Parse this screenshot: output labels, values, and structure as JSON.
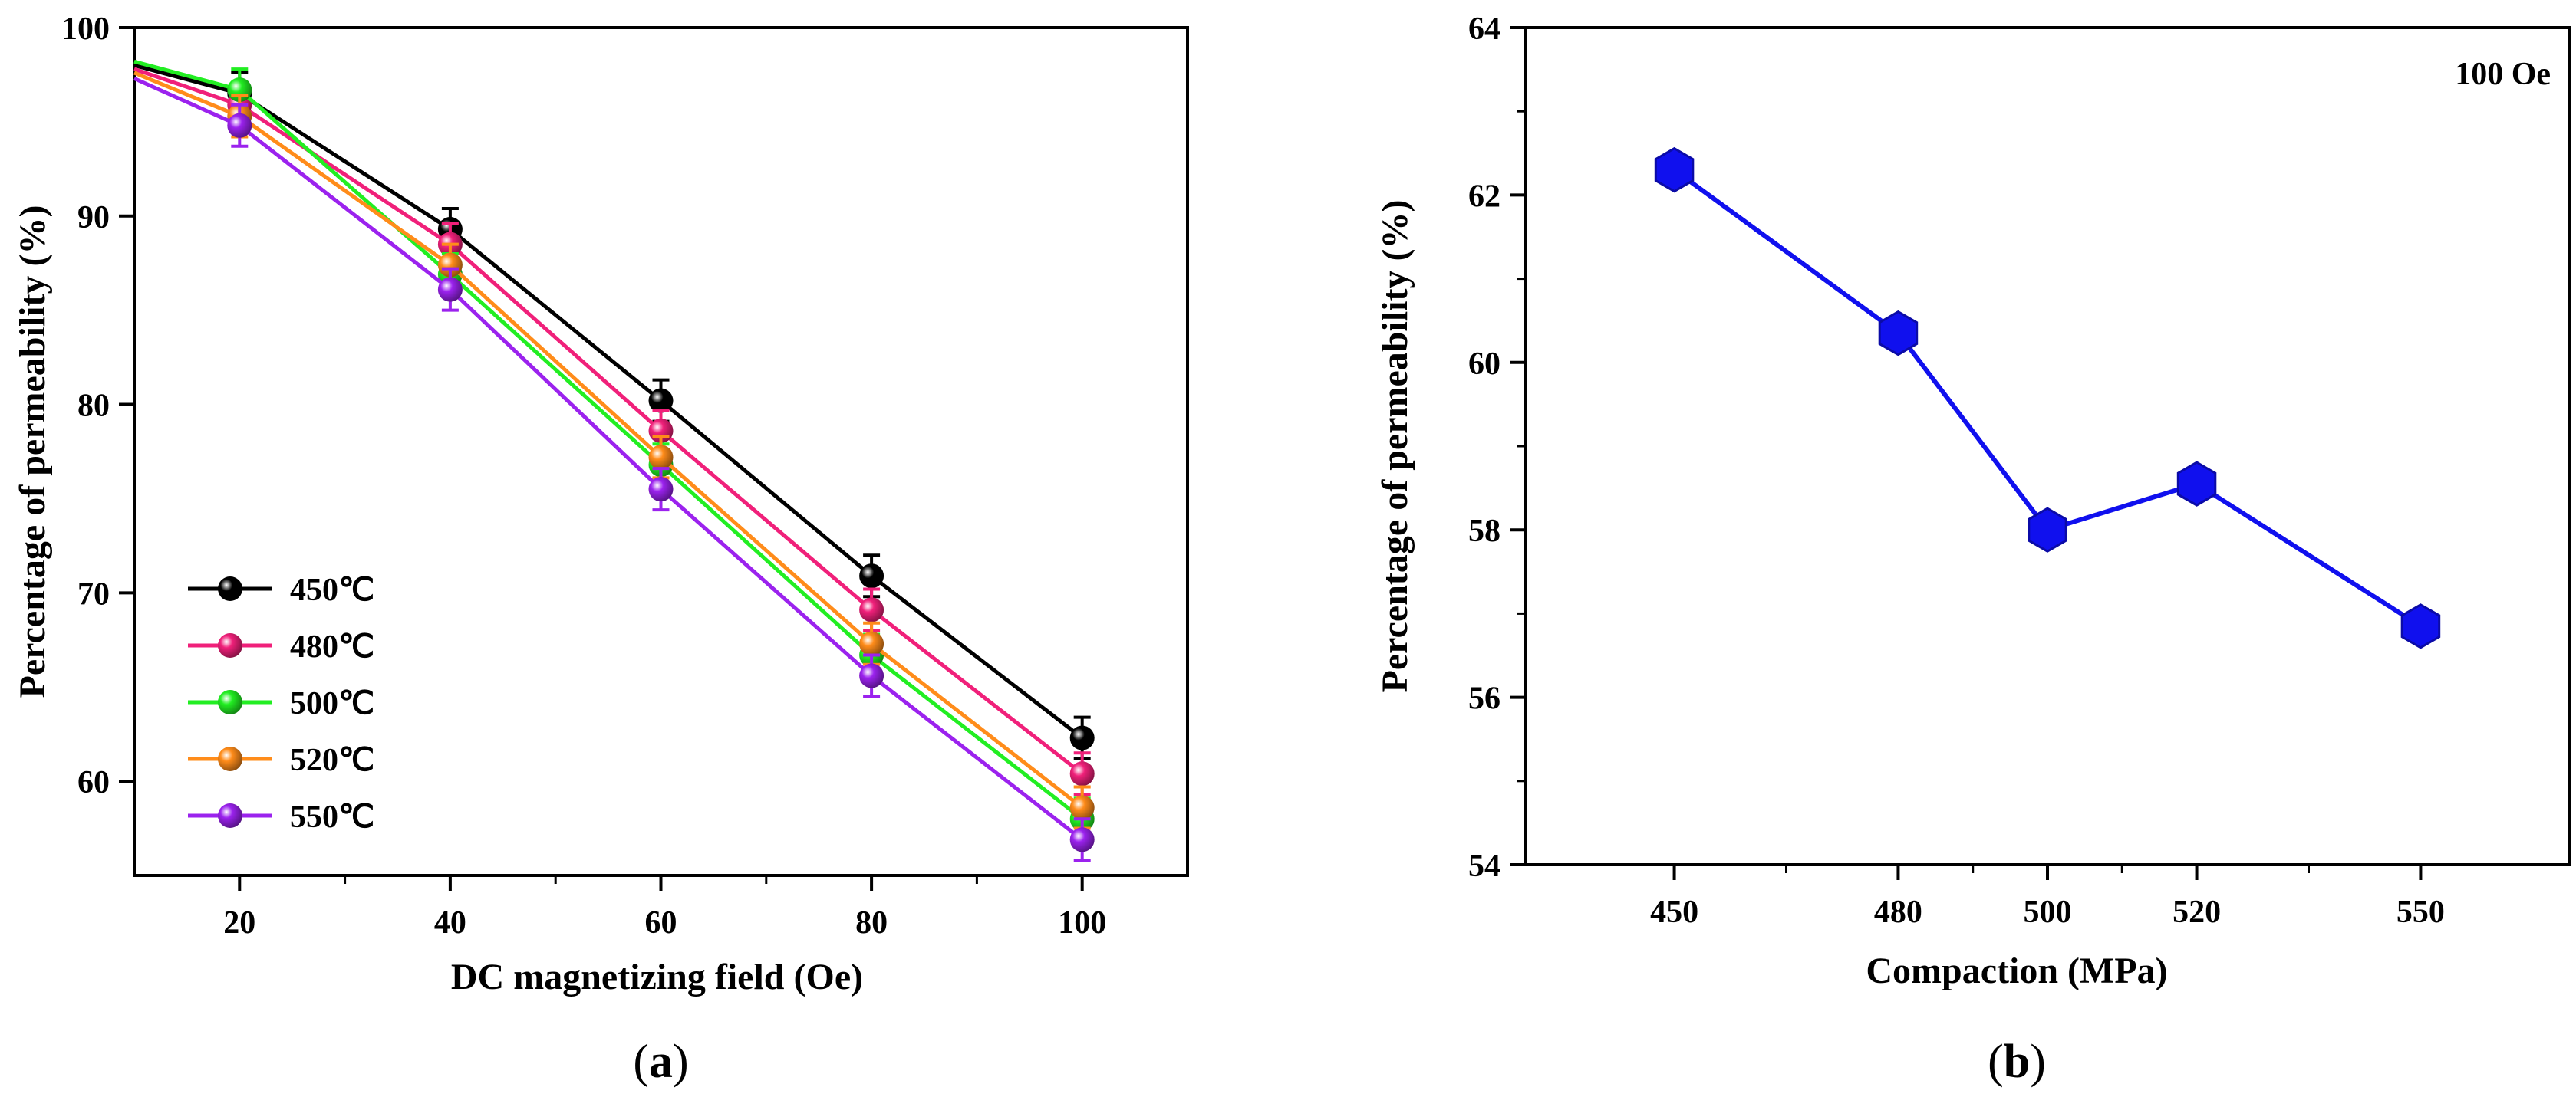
{
  "chart_data": [
    {
      "id": "a",
      "type": "line",
      "panel_label": "a",
      "title": "",
      "xlabel": "DC magnetizing field (Oe)",
      "ylabel": "Percentage of permeability (%)",
      "xlim": [
        10,
        110
      ],
      "ylim": [
        55,
        100
      ],
      "xticks": [
        20,
        40,
        60,
        80,
        100
      ],
      "yticks": [
        60,
        70,
        80,
        90,
        100
      ],
      "x": [
        10,
        20,
        40,
        60,
        80,
        100
      ],
      "legend_position": "bottom-left",
      "series": [
        {
          "name": "450℃",
          "color": "#000000",
          "values": [
            98.0,
            96.5,
            89.3,
            80.2,
            70.9,
            62.3
          ]
        },
        {
          "name": "480℃",
          "color": "#f0207a",
          "values": [
            97.8,
            95.9,
            88.5,
            78.6,
            69.1,
            60.4
          ]
        },
        {
          "name": "500℃",
          "color": "#22ee22",
          "values": [
            98.2,
            96.7,
            86.9,
            76.8,
            66.7,
            58.0
          ]
        },
        {
          "name": "520℃",
          "color": "#ff8c1a",
          "values": [
            97.6,
            95.3,
            87.4,
            77.2,
            67.3,
            58.6
          ]
        },
        {
          "name": "550℃",
          "color": "#9b22ee",
          "values": [
            97.3,
            94.8,
            86.1,
            75.5,
            65.6,
            56.9
          ]
        }
      ]
    },
    {
      "id": "b",
      "type": "line",
      "panel_label": "b",
      "title": "",
      "annotation": "100 Oe",
      "xlabel": "Compaction (MPa)",
      "ylabel": "Percentage of permeability (%)",
      "xlim": [
        430,
        570
      ],
      "ylim": [
        54,
        64
      ],
      "xticks": [
        450,
        480,
        500,
        520,
        550
      ],
      "yticks": [
        54,
        56,
        58,
        60,
        62,
        64
      ],
      "x": [
        450,
        480,
        500,
        520,
        550
      ],
      "series": [
        {
          "name": "100 Oe",
          "color": "#1010ee",
          "values": [
            62.3,
            60.35,
            58.0,
            58.55,
            56.85
          ]
        }
      ]
    }
  ]
}
